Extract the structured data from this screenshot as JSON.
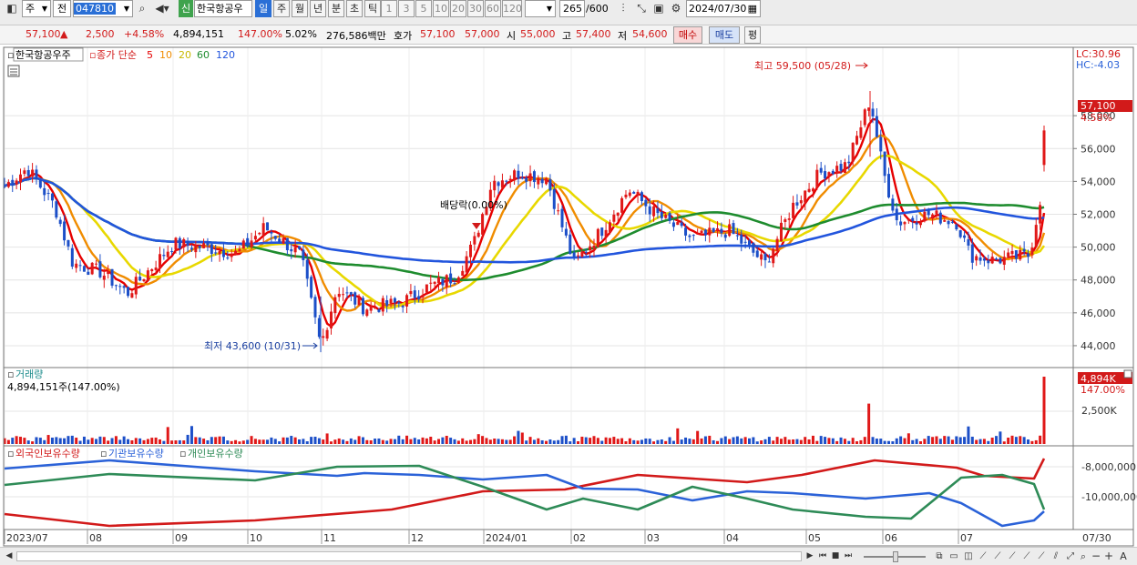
{
  "toolbar": {
    "market_select": "주",
    "prev_btn": "전",
    "code": "047810",
    "credit_badge": "신",
    "name": "한국항공우",
    "periods": [
      "일",
      "주",
      "월",
      "년",
      "분",
      "초",
      "틱"
    ],
    "intervals": [
      "1",
      "3",
      "5",
      "10",
      "20",
      "30",
      "60",
      "120"
    ],
    "count": "265",
    "count_total": "/600",
    "date": "2024/07/30"
  },
  "info": {
    "price": "57,100",
    "up_arrow": "▲",
    "change": "2,500",
    "change_pct": "+4.58%",
    "volume": "4,894,151",
    "vol_ratio": "147.00%",
    "turnover": "5.02%",
    "amount": "276,586백만",
    "quote_label": "호가",
    "ask": "57,100",
    "bid": "57,000",
    "open_label": "시",
    "open": "55,000",
    "high_label": "고",
    "high": "57,400",
    "low_label": "저",
    "low": "54,600",
    "buy_btn": "매수",
    "sell_btn": "매도",
    "avg_btn": "평"
  },
  "legend": {
    "name": "한국항공우주",
    "title": "종가 단순",
    "ma": [
      {
        "label": "5",
        "color": "#E60000"
      },
      {
        "label": "10",
        "color": "#F08C00"
      },
      {
        "label": "20",
        "color": "#E8D800"
      },
      {
        "label": "60",
        "color": "#1E8C2E"
      },
      {
        "label": "120",
        "color": "#2255DD"
      }
    ]
  },
  "lc_hc": {
    "lc": "LC:30.96",
    "hc": "HC:-4.03"
  },
  "price_axis": [
    "58,000",
    "56,000",
    "54,000",
    "52,000",
    "50,000",
    "48,000",
    "46,000",
    "44,000"
  ],
  "last_price_tag": "57,100",
  "last_pct_tag": "4.58%",
  "annotations": {
    "high": "최고 59,500 (05/28)",
    "low": "최저 43,600 (10/31)",
    "dividend": "배당락(0.00%)"
  },
  "volume_pane": {
    "title": "거래량",
    "value": "4,894,151주(147.00%)",
    "axis": "2,500K",
    "tag_value": "4,894K",
    "tag_pct": "147.00%"
  },
  "holdings_pane": {
    "series": [
      {
        "label": "외국인보유수량",
        "color": "#D21A1A"
      },
      {
        "label": "기관보유수량",
        "color": "#2B62D8"
      },
      {
        "label": "개인보유수량",
        "color": "#2E8B57"
      }
    ],
    "axis": [
      "-8,000,000",
      "-10,000,000"
    ]
  },
  "date_axis": [
    "2023/07",
    "08",
    "09",
    "10",
    "11",
    "12",
    "2024/01",
    "02",
    "03",
    "04",
    "05",
    "06",
    "07",
    "07/30"
  ],
  "chart_data": {
    "type": "candlestick",
    "x_range": [
      "2023/07",
      "2024/07/30"
    ],
    "ylim": [
      43000,
      60500
    ],
    "high": {
      "date": "05/28",
      "value": 59500
    },
    "low": {
      "date": "10/31",
      "value": 43600
    },
    "last": {
      "date": "07/30",
      "close": 57100,
      "open": 55000,
      "high": 57400,
      "low": 54600,
      "volume": 4894151
    },
    "y_ticks": [
      44000,
      46000,
      48000,
      50000,
      52000,
      54000,
      56000,
      58000
    ],
    "volume_ticks": [
      2500000
    ],
    "holding_ticks": [
      -8000000,
      -10000000
    ]
  }
}
